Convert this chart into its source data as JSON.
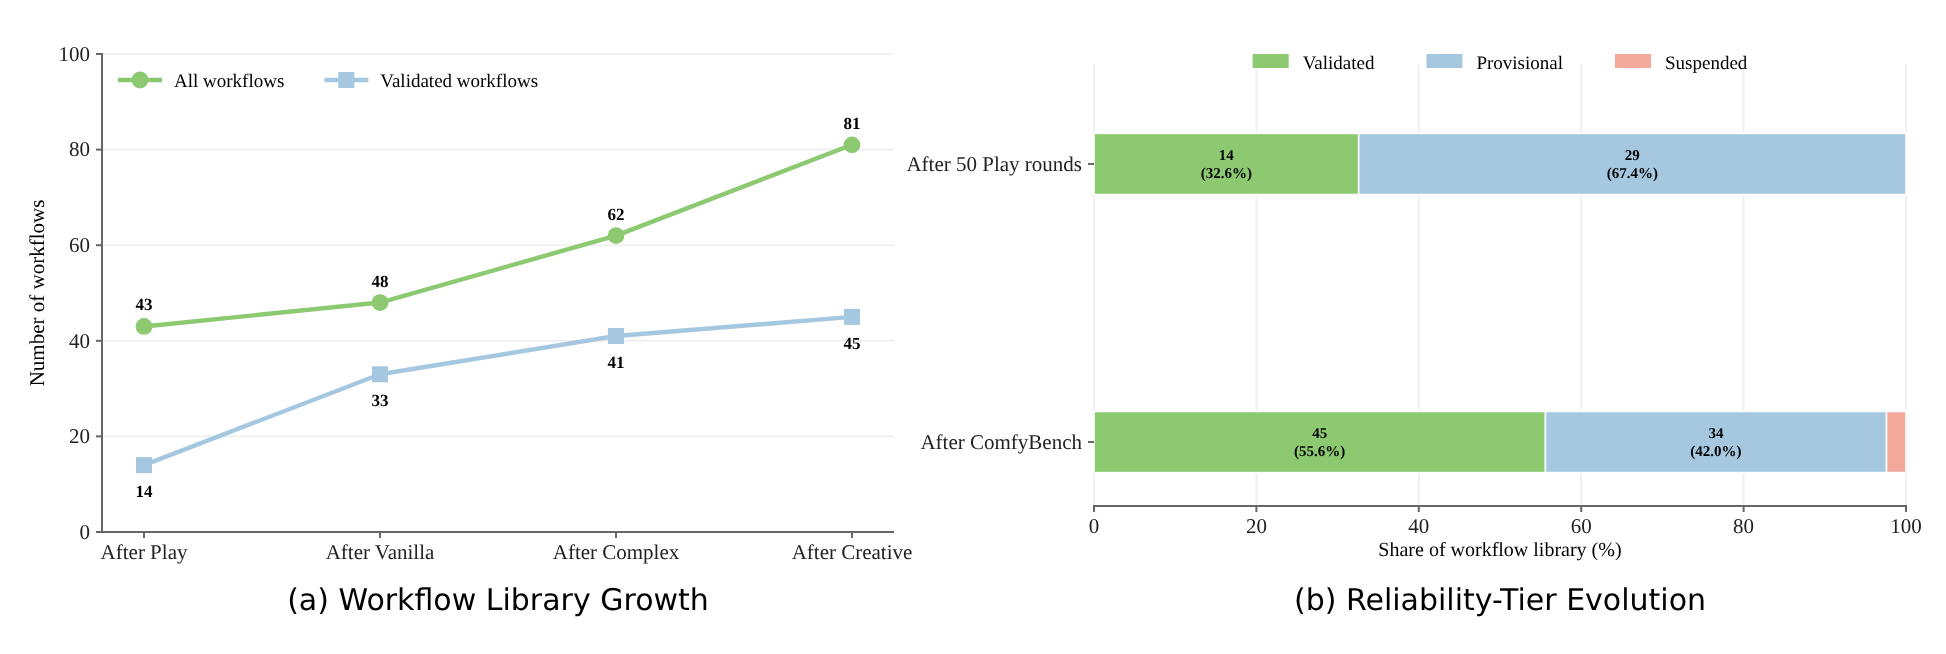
{
  "chart_data": [
    {
      "type": "line",
      "title": "(a) Workflow Library Growth",
      "ylabel": "Number of workflows",
      "categories": [
        "After Play",
        "After Vanilla",
        "After Complex",
        "After Creative"
      ],
      "series": [
        {
          "name": "All workflows",
          "color": "#8cc971",
          "values": [
            43,
            48,
            62,
            81
          ],
          "marker": "circle"
        },
        {
          "name": "Validated workflows",
          "color": "#a5c8e0",
          "values": [
            14,
            33,
            41,
            45
          ],
          "marker": "square"
        }
      ],
      "ylim": [
        0,
        100
      ],
      "yticks": [
        0,
        20,
        40,
        60,
        80,
        100
      ],
      "grid": "y",
      "legend": "top left",
      "data_labels": true,
      "line_style": "solid"
    },
    {
      "type": "bar",
      "orientation": "horizontal",
      "stacked": true,
      "title": "(b) Reliability-Tier Evolution",
      "xlabel": "Share of workflow library (%)",
      "categories": [
        "After 50 Play rounds",
        "After ComfyBench"
      ],
      "series": [
        {
          "name": "Validated",
          "color": "#8cc971",
          "values": [
            32.6,
            55.6
          ],
          "value_labels": [
            "14\n(32.6%)",
            "45\n(55.6%)"
          ]
        },
        {
          "name": "Provisional",
          "color": "#a5c8e0",
          "values": [
            67.4,
            42.0
          ],
          "value_labels": [
            "29\n(67.4%)",
            "34\n(42.0%)"
          ]
        },
        {
          "name": "Suspended",
          "color": "#f2a99a",
          "values": [
            0,
            2.4
          ],
          "value_labels": [
            null,
            null
          ]
        }
      ],
      "xlim": [
        0,
        100
      ],
      "xticks": [
        0,
        20,
        40,
        60,
        80,
        100
      ],
      "grid": "x",
      "legend": "top"
    }
  ]
}
